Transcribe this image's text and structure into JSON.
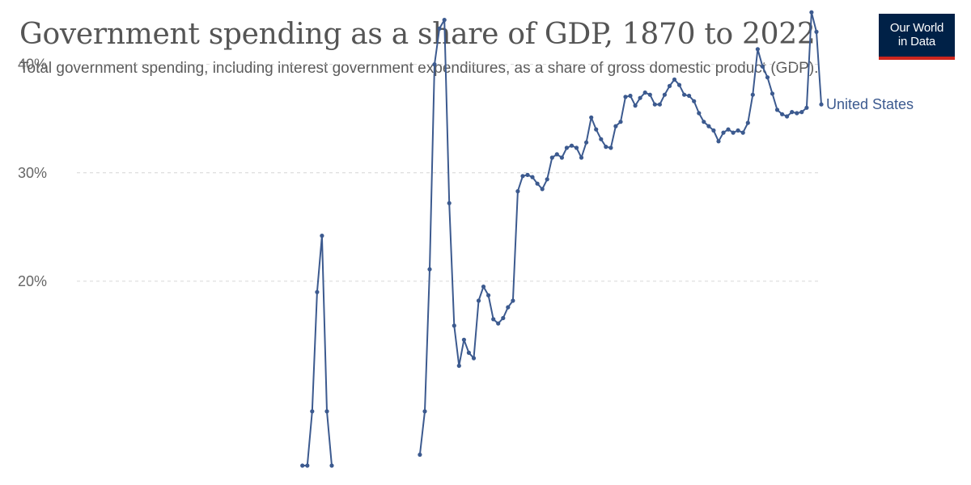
{
  "header": {
    "title": "Government spending as a share of GDP, 1870 to 2022",
    "subtitle": "Total government spending, including interest government expenditures, as a share of gross domestic product (GDP)."
  },
  "logo": {
    "line1": "Our World",
    "line2": "in Data",
    "bg": "#002147",
    "accent": "#ce261e"
  },
  "chart_data": {
    "type": "line",
    "title": "Government spending as a share of GDP, 1870 to 2022",
    "subtitle": "Total government spending, including interest government expenditures, as a share of gross domestic product (GDP).",
    "y_unit": "%",
    "yticks": [
      20,
      30,
      40
    ],
    "ytick_labels": [
      "20%",
      "30%",
      "40%"
    ],
    "xlim": [
      1870,
      2022
    ],
    "ylim_visible": [
      9,
      46
    ],
    "grid": "horizontal-dashed",
    "series": [
      {
        "name": "United States",
        "color": "#3c5a8f",
        "points": [
          [
            1915,
            3
          ],
          [
            1916,
            3
          ],
          [
            1917,
            8
          ],
          [
            1918,
            19.0
          ],
          [
            1919,
            24.2
          ],
          [
            1920,
            8
          ],
          [
            1921,
            3
          ],
          [
            1939,
            4
          ],
          [
            1940,
            8
          ],
          [
            1941,
            21.1
          ],
          [
            1942,
            40.0
          ],
          [
            1943,
            43.3
          ],
          [
            1944,
            44.1
          ],
          [
            1945,
            27.2
          ],
          [
            1946,
            15.9
          ],
          [
            1947,
            12.2
          ],
          [
            1948,
            14.6
          ],
          [
            1949,
            13.4
          ],
          [
            1950,
            12.9
          ],
          [
            1951,
            18.2
          ],
          [
            1952,
            19.5
          ],
          [
            1953,
            18.7
          ],
          [
            1954,
            16.5
          ],
          [
            1955,
            16.1
          ],
          [
            1956,
            16.6
          ],
          [
            1957,
            17.6
          ],
          [
            1958,
            18.2
          ],
          [
            1959,
            28.3
          ],
          [
            1960,
            29.7
          ],
          [
            1961,
            29.8
          ],
          [
            1962,
            29.6
          ],
          [
            1963,
            29.0
          ],
          [
            1964,
            28.5
          ],
          [
            1965,
            29.4
          ],
          [
            1966,
            31.4
          ],
          [
            1967,
            31.7
          ],
          [
            1968,
            31.4
          ],
          [
            1969,
            32.3
          ],
          [
            1970,
            32.5
          ],
          [
            1971,
            32.3
          ],
          [
            1972,
            31.4
          ],
          [
            1973,
            32.8
          ],
          [
            1974,
            35.1
          ],
          [
            1975,
            34.0
          ],
          [
            1976,
            33.1
          ],
          [
            1977,
            32.4
          ],
          [
            1978,
            32.3
          ],
          [
            1979,
            34.3
          ],
          [
            1980,
            34.7
          ],
          [
            1981,
            37.0
          ],
          [
            1982,
            37.1
          ],
          [
            1983,
            36.2
          ],
          [
            1984,
            36.9
          ],
          [
            1985,
            37.4
          ],
          [
            1986,
            37.2
          ],
          [
            1987,
            36.3
          ],
          [
            1988,
            36.3
          ],
          [
            1989,
            37.2
          ],
          [
            1990,
            38.0
          ],
          [
            1991,
            38.6
          ],
          [
            1992,
            38.1
          ],
          [
            1993,
            37.2
          ],
          [
            1994,
            37.1
          ],
          [
            1995,
            36.6
          ],
          [
            1996,
            35.5
          ],
          [
            1997,
            34.7
          ],
          [
            1998,
            34.3
          ],
          [
            1999,
            33.9
          ],
          [
            2000,
            32.9
          ],
          [
            2001,
            33.7
          ],
          [
            2002,
            34.0
          ],
          [
            2003,
            33.7
          ],
          [
            2004,
            33.9
          ],
          [
            2005,
            33.7
          ],
          [
            2006,
            34.6
          ],
          [
            2007,
            37.2
          ],
          [
            2008,
            41.4
          ],
          [
            2009,
            39.8
          ],
          [
            2010,
            38.8
          ],
          [
            2011,
            37.3
          ],
          [
            2012,
            35.8
          ],
          [
            2013,
            35.4
          ],
          [
            2014,
            35.2
          ],
          [
            2015,
            35.6
          ],
          [
            2016,
            35.5
          ],
          [
            2017,
            35.6
          ],
          [
            2018,
            36.0
          ],
          [
            2019,
            44.8
          ],
          [
            2020,
            43.0
          ],
          [
            2021,
            36.3
          ]
        ]
      }
    ]
  }
}
